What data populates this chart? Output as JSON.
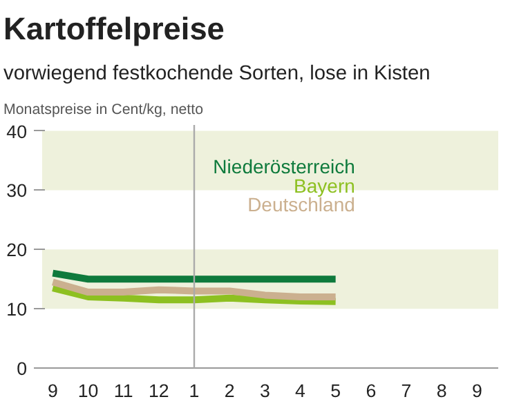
{
  "chart_data": {
    "type": "line",
    "title": "Kartoffelpreise",
    "subtitle": "vorwiegend festkochende Sorten, lose in Kisten",
    "ylabel": "Monatspreise in Cent/kg, netto",
    "categories": [
      "9",
      "10",
      "11",
      "12",
      "1",
      "2",
      "3",
      "4",
      "5",
      "6",
      "7",
      "8",
      "9"
    ],
    "series": [
      {
        "name": "Niederösterreich",
        "color": "#0e7a3c",
        "values": [
          16,
          15,
          15,
          15,
          15,
          15,
          15,
          15,
          15,
          null,
          null,
          null,
          null
        ]
      },
      {
        "name": "Bayern",
        "color": "#8dc021",
        "values": [
          13.5,
          12,
          11.8,
          11.5,
          11.5,
          11.8,
          11.5,
          11.3,
          11.2,
          null,
          null,
          null,
          null
        ]
      },
      {
        "name": "Deutschland",
        "color": "#cbb08f",
        "values": [
          14.5,
          12.8,
          12.8,
          13.2,
          13,
          13,
          12.3,
          12,
          12,
          null,
          null,
          null,
          null
        ]
      }
    ],
    "ylim": [
      0,
      41
    ],
    "yticks": [
      0,
      10,
      20,
      30,
      40
    ],
    "grid": false,
    "legend": "top right",
    "bands": [
      {
        "axis": "y",
        "from": 10,
        "to": 20,
        "color": "#eef1dc"
      },
      {
        "axis": "y",
        "from": 30,
        "to": 40,
        "color": "#eef1dc"
      }
    ],
    "ref_lines": [
      {
        "axis": "x",
        "value": "1",
        "color": "#aaaaaa"
      }
    ]
  }
}
